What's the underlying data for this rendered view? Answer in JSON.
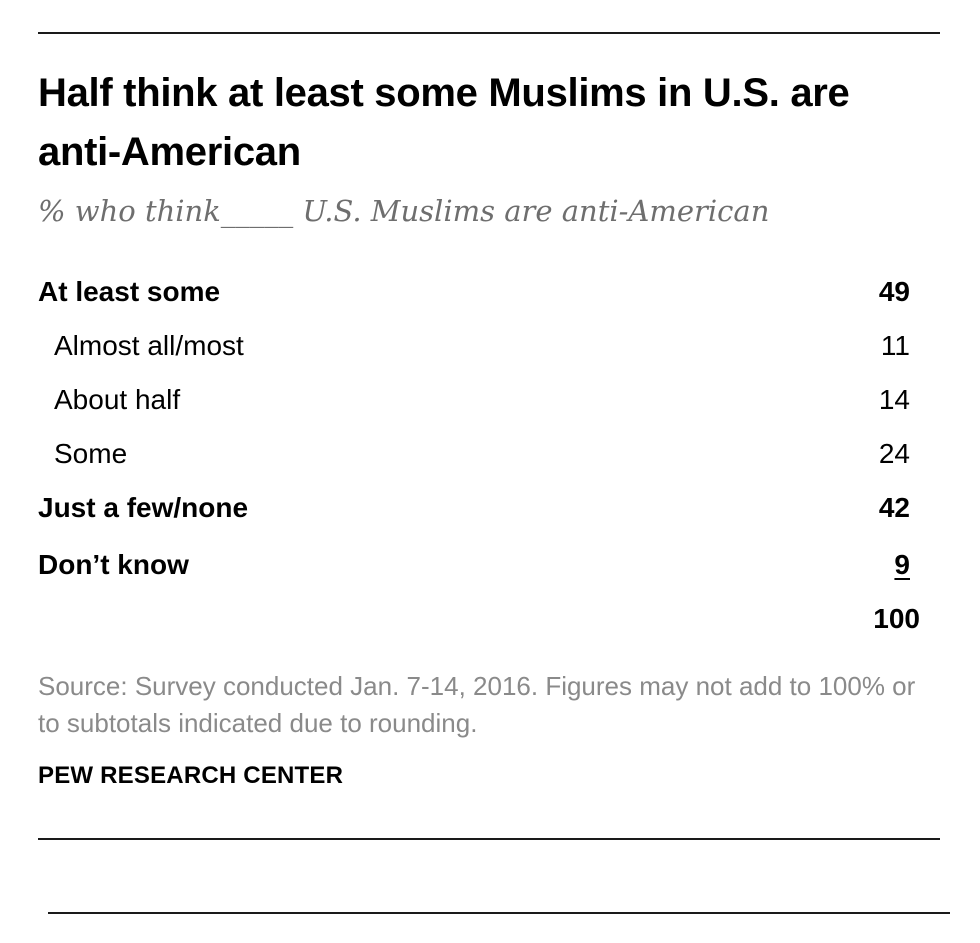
{
  "chart_data": {
    "type": "table",
    "title": "Half think at least some Muslims in U.S. are anti-American",
    "subtitle": "% who think_____ U.S. Muslims are anti-American",
    "rows": [
      {
        "label": "At least some",
        "value": "49",
        "level": "main"
      },
      {
        "label": "Almost all/most",
        "value": "11",
        "level": "sub"
      },
      {
        "label": "About half",
        "value": "14",
        "level": "sub"
      },
      {
        "label": "Some",
        "value": "24",
        "level": "sub"
      },
      {
        "label": "Just a few/none",
        "value": "42",
        "level": "main"
      },
      {
        "label": "Don’t know",
        "value": "9",
        "level": "main",
        "underlined": true
      },
      {
        "label": "",
        "value": "100",
        "level": "total"
      }
    ],
    "source": "Source: Survey conducted Jan. 7-14, 2016. Figures may not add to 100% or to subtotals indicated due to rounding.",
    "brand": "PEW RESEARCH CENTER"
  }
}
